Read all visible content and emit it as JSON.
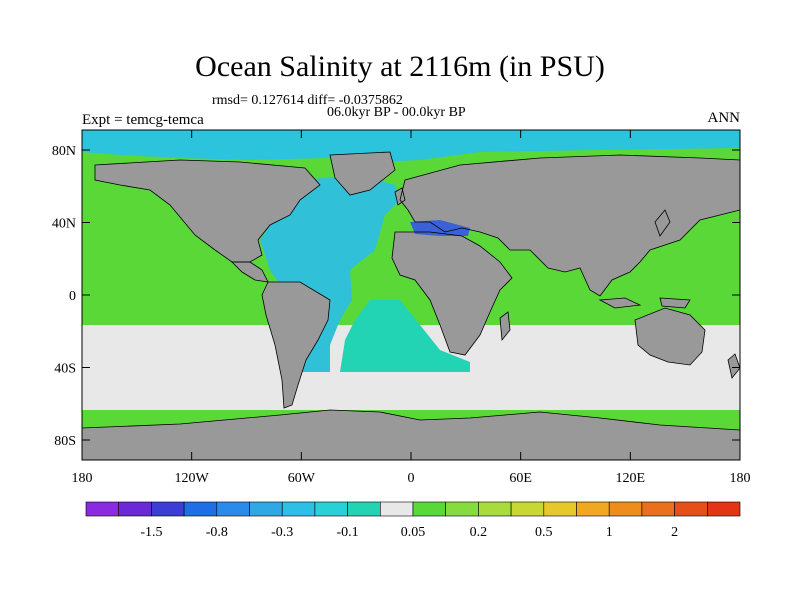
{
  "title": "Ocean Salinity at 2116m (in PSU)",
  "stats_line": "rmsd= 0.127614 diff= -0.0375862",
  "period_line": "06.0kyr BP - 00.0kyr BP",
  "experiment_line": "Expt = temcg-temca",
  "season": "ANN",
  "lat_ticks": [
    "80N",
    "40N",
    "0",
    "40S",
    "80S"
  ],
  "lon_ticks": [
    "180",
    "120W",
    "60W",
    "0",
    "60E",
    "120E",
    "180"
  ],
  "colorbar": {
    "colors": [
      "#8a2be2",
      "#6a2ad8",
      "#3c3cd6",
      "#1e6ee6",
      "#2a8cea",
      "#30a8e6",
      "#2cc0e6",
      "#28d0d8",
      "#22d4b4",
      "#e8e8e8",
      "#5ad838",
      "#86dc3c",
      "#a8dc3c",
      "#c8d832",
      "#e6c82a",
      "#f0a820",
      "#ee8c1c",
      "#ea701c",
      "#e65018",
      "#e43416"
    ],
    "labels": [
      "-1.5",
      "-0.8",
      "-0.3",
      "-0.1",
      "0.05",
      "0.2",
      "0.5",
      "1",
      "2"
    ]
  },
  "map_colors": {
    "land": "#999999",
    "arctic": "#2cc4dc",
    "atlantic": "#30c0d8",
    "south_atlantic": "#22d4b4",
    "southern_ocean": "#e8e8e8",
    "pacific_indian": "#5ad838",
    "mediterranean": "#3a62d6"
  }
}
